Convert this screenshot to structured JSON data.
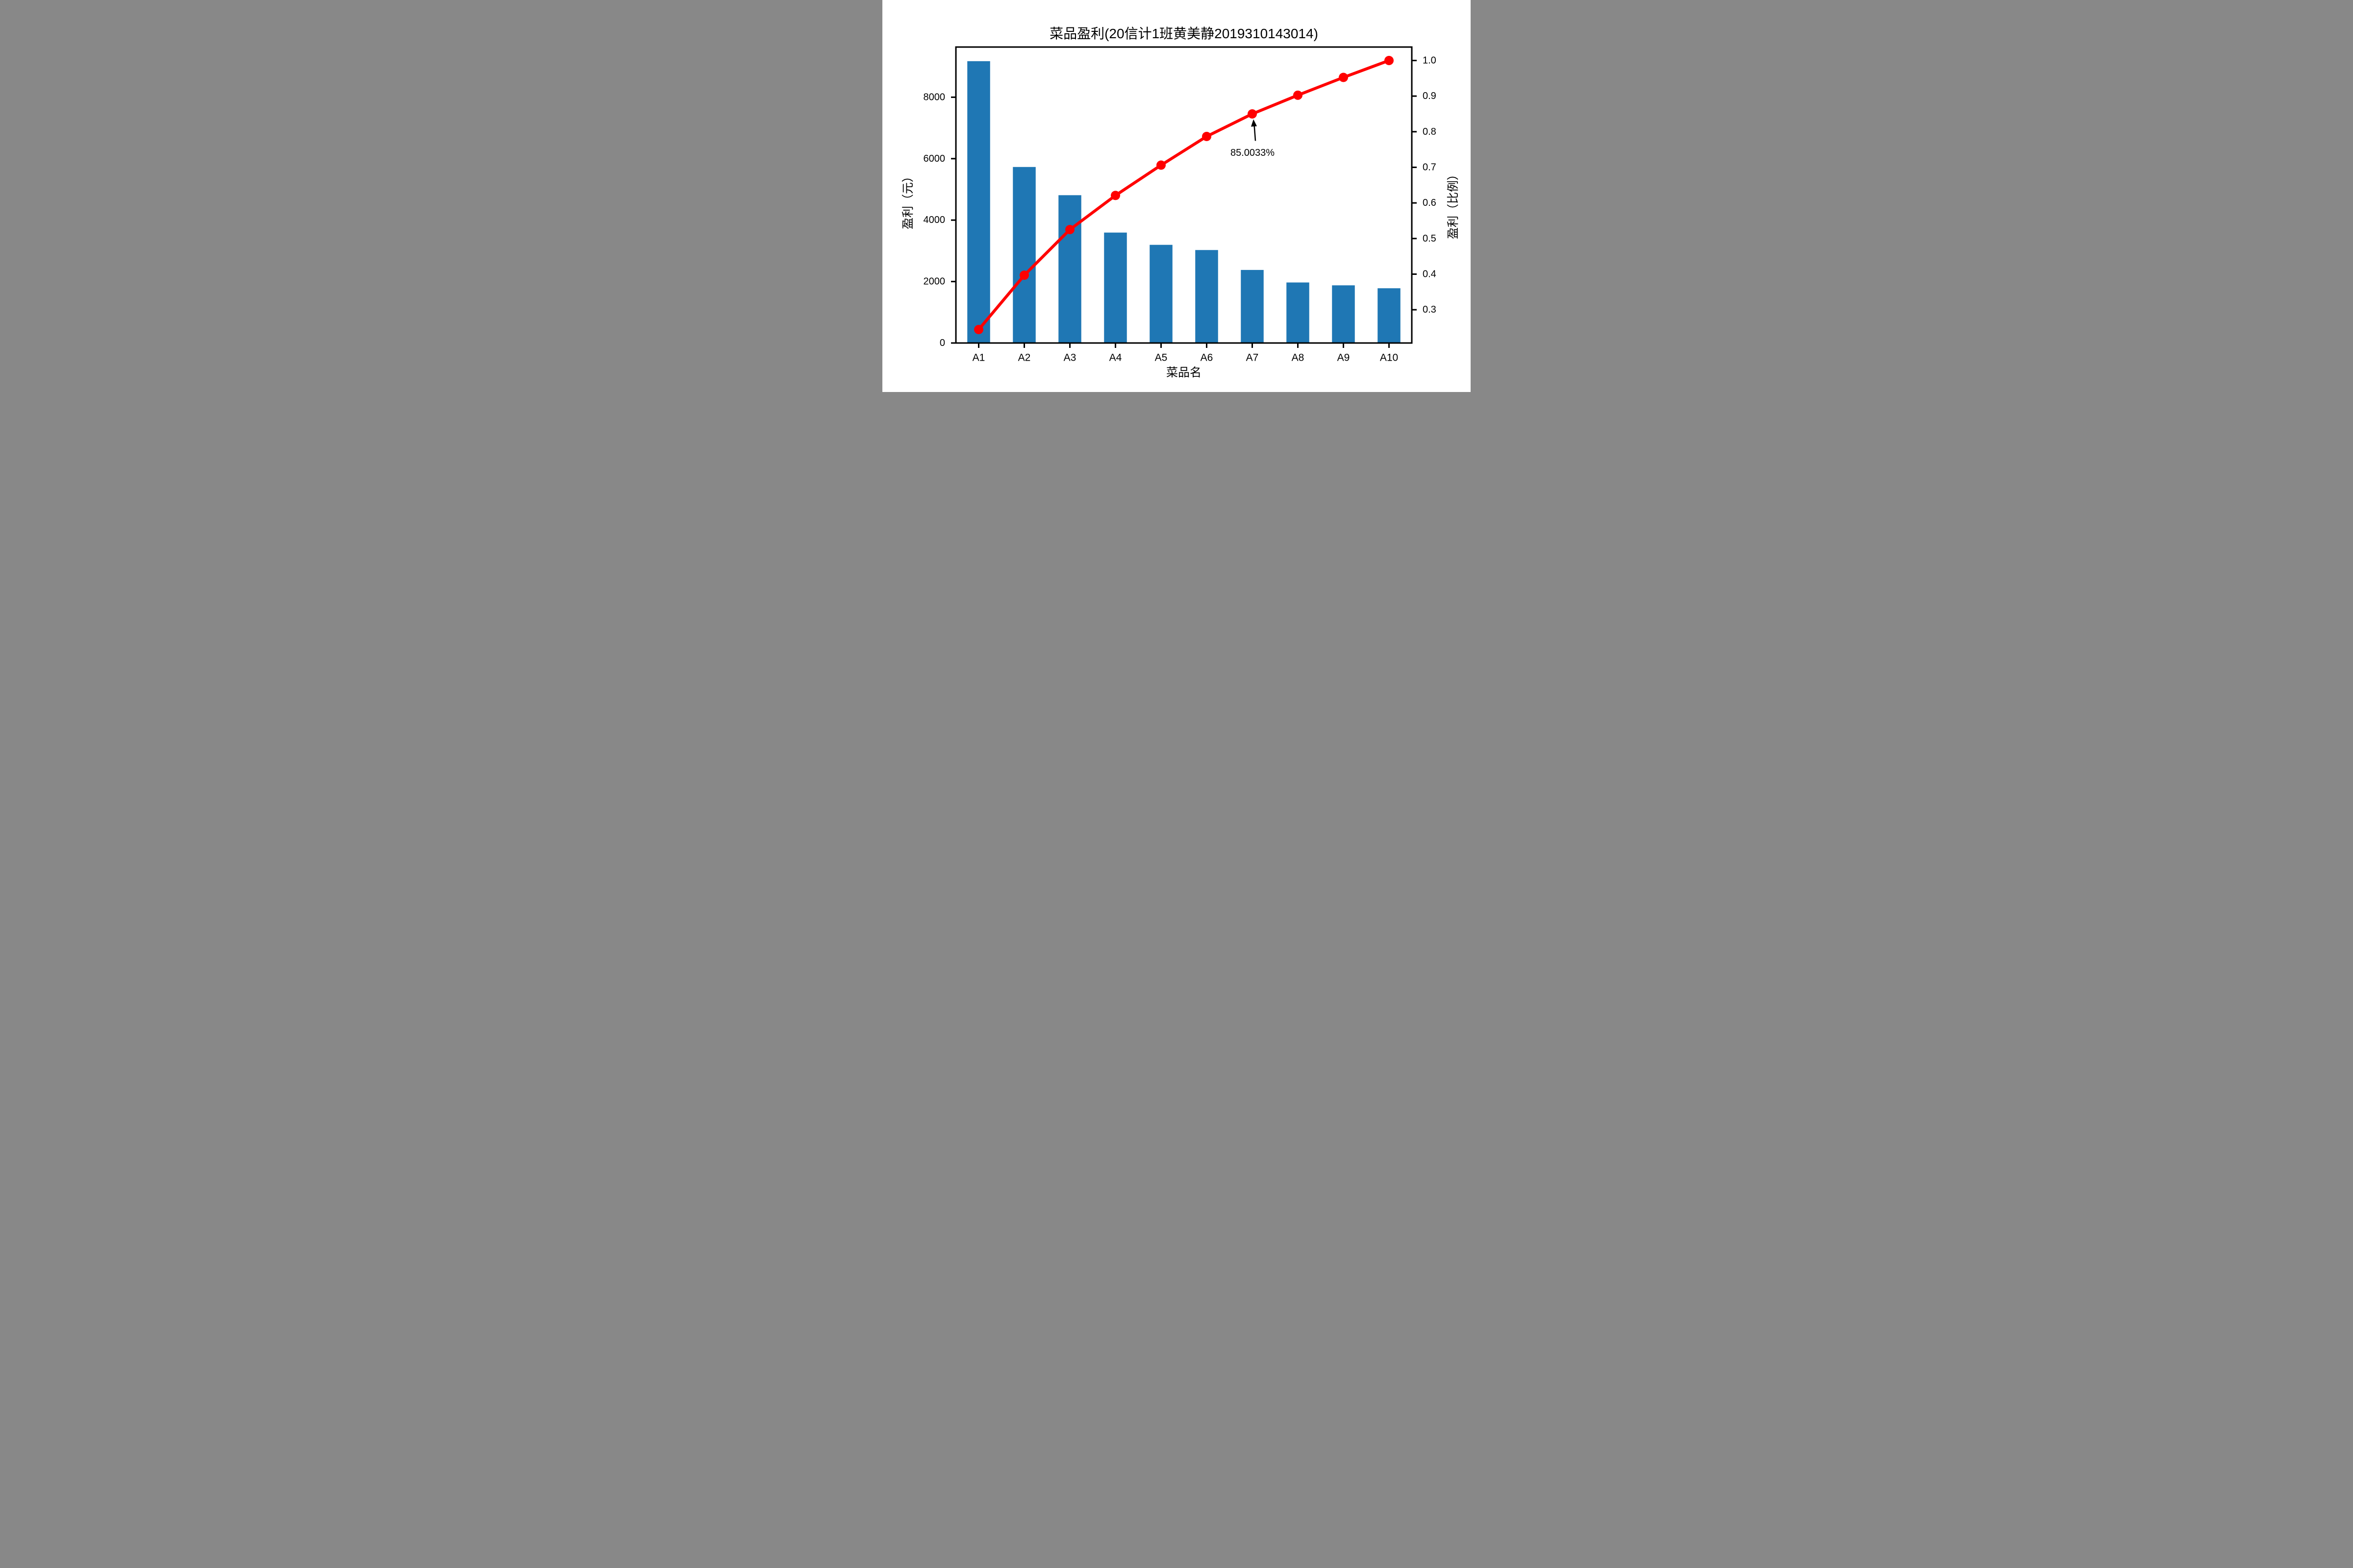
{
  "chart_data": {
    "type": "pareto (bar + cumulative line)",
    "title": "菜品盈利(20信计1班黄美静2019310143014)",
    "x_axis": {
      "label": "菜品名",
      "categories": [
        "A1",
        "A2",
        "A3",
        "A4",
        "A5",
        "A6",
        "A7",
        "A8",
        "A9",
        "A10"
      ],
      "range": [
        -0.5,
        9.5
      ]
    },
    "left_y_axis": {
      "label": "盈利（元）",
      "tick_labels": [
        "0",
        "2000",
        "4000",
        "6000",
        "8000"
      ],
      "tick_values": [
        0,
        2000,
        4000,
        6000,
        8000
      ],
      "range": [
        0,
        9633
      ]
    },
    "right_y_axis": {
      "label": "盈利（比例）",
      "tick_labels": [
        "0.3",
        "0.4",
        "0.5",
        "0.6",
        "0.7",
        "0.8",
        "0.9",
        "1.0"
      ],
      "tick_values": [
        0.3,
        0.4,
        0.5,
        0.6,
        0.7,
        0.8,
        0.9,
        1.0
      ],
      "range": [
        0.2066,
        1.0378
      ]
    },
    "series": [
      {
        "id": "profit-bars",
        "type": "bar",
        "axis": "left",
        "color": "#1f77b4",
        "values": [
          9173,
          5729,
          4811,
          3594,
          3195,
          3026,
          2378,
          1970,
          1877,
          1782
        ]
      },
      {
        "id": "cumulative-ratio-line",
        "type": "line",
        "axis": "right",
        "color": "#ff0000",
        "marker": "circle",
        "values": [
          0.2444,
          0.397,
          0.5252,
          0.621,
          0.7061,
          0.7867,
          0.85,
          0.9025,
          0.9525,
          1.0
        ]
      }
    ],
    "annotation": {
      "text": "85.0033%",
      "target_category": "A7",
      "target_value": 0.85,
      "arrow_color": "#000000"
    },
    "grid": false,
    "legend": "none",
    "axes_color": "#000000",
    "background_color": "#ffffff"
  }
}
